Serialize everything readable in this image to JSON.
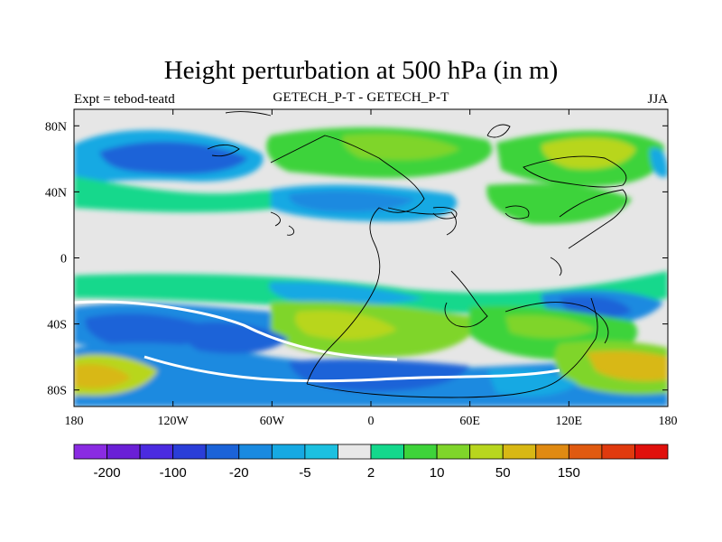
{
  "title": "Height perturbation at 500 hPa (in m)",
  "subtitle_left": "Expt = tebod-teatd",
  "subtitle_center": "GETECH_P-T - GETECH_P-T",
  "subtitle_right": "JJA",
  "map": {
    "lon_range": [
      -180,
      180
    ],
    "lat_range": [
      -90,
      90
    ],
    "x_ticks": [
      "180",
      "120W",
      "60W",
      "0",
      "60E",
      "120E",
      "180"
    ],
    "y_ticks": [
      "80N",
      "40N",
      "0",
      "40S",
      "80S"
    ],
    "background_color": "#e6e6e6"
  },
  "colorbar": {
    "colors": [
      "#8a2be2",
      "#6a1fd6",
      "#4b2be0",
      "#2a3ed8",
      "#1b63d8",
      "#1a8ae0",
      "#16a9e3",
      "#1cc0e0",
      "#e8e8e8",
      "#14d88c",
      "#3ed33a",
      "#7fd52a",
      "#b8d61e",
      "#d8b814",
      "#e08a12",
      "#e05a10",
      "#e03a0e",
      "#e0100c"
    ],
    "labels": [
      "-200",
      "-100",
      "-20",
      "-5",
      "2",
      "10",
      "50",
      "150"
    ]
  }
}
